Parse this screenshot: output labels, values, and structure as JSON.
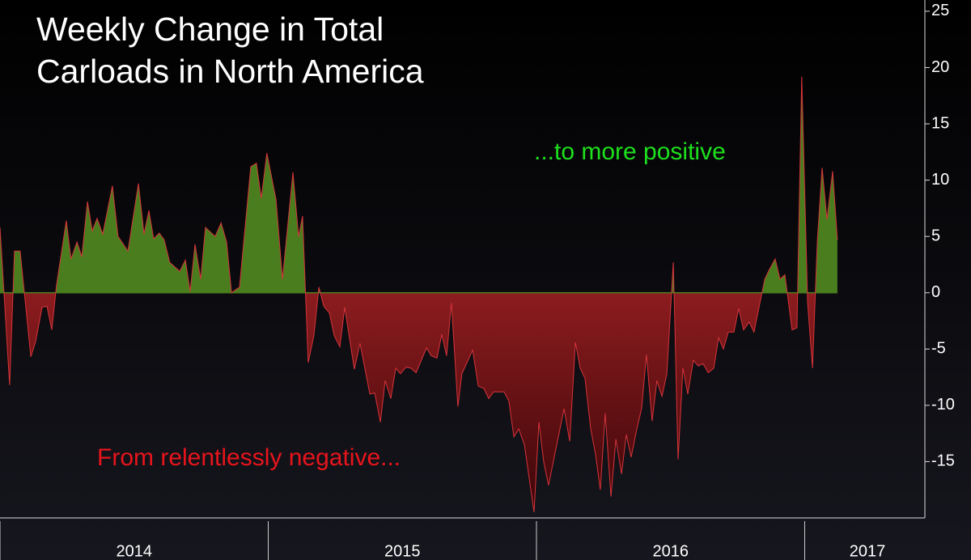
{
  "chart_data": {
    "type": "area",
    "title": [
      "Weekly Change in Total",
      "Carloads in North America"
    ],
    "annotations": [
      {
        "text": "...to more positive",
        "color": "#1ee01e"
      },
      {
        "text": "From relentlessly negative...",
        "color": "#e8141c"
      }
    ],
    "positive_color": "#4a7d1e",
    "negative_color": "#8c1c1f",
    "line_color": "#d8343a",
    "xlim": [
      2014,
      2017.448
    ],
    "xticks": [
      {
        "value": 2014.5,
        "label": "2014"
      },
      {
        "value": 2015.5,
        "label": "2015"
      },
      {
        "value": 2016.5,
        "label": "2016"
      },
      {
        "value": 2017.5,
        "label": "2017"
      }
    ],
    "ylim": [
      -20,
      26
    ],
    "yticks": [
      -15,
      -10,
      -5,
      0,
      5,
      10,
      15,
      20,
      25
    ],
    "y_axis_side": "right",
    "x": [
      2014,
      2014.036,
      2014.054,
      2014.075,
      2014.115,
      2014.133,
      2014.157,
      2014.175,
      2014.193,
      2014.211,
      2014.247,
      2014.265,
      2014.287,
      2014.305,
      2014.326,
      2014.344,
      2014.362,
      2014.383,
      2014.419,
      2014.44,
      2014.477,
      2014.516,
      2014.537,
      2014.555,
      2014.573,
      2014.594,
      2014.612,
      2014.633,
      2014.67,
      2014.691,
      2014.709,
      2014.727,
      2014.748,
      2014.766,
      2014.802,
      2014.824,
      2014.845,
      2014.863,
      2014.893,
      2014.935,
      2014.956,
      2014.974,
      2014.995,
      2015.029,
      2015.053,
      2015.092,
      2015.113,
      2015.128,
      2015.149,
      2015.17,
      2015.189,
      2015.207,
      2015.228,
      2015.246,
      2015.267,
      2015.285,
      2015.321,
      2015.342,
      2015.379,
      2015.397,
      2015.418,
      2015.436,
      2015.457,
      2015.475,
      2015.493,
      2015.514,
      2015.532,
      2015.551,
      2015.59,
      2015.608,
      2015.629,
      2015.647,
      2015.665,
      2015.683,
      2015.707,
      2015.722,
      2015.762,
      2015.783,
      2015.804,
      2015.822,
      2015.84,
      2015.879,
      2015.897,
      2015.916,
      2015.934,
      2015.955,
      2015.991,
      2016.009,
      2016.027,
      2016.045,
      2016.066,
      2016.103,
      2016.124,
      2016.145,
      2016.163,
      2016.181,
      2016.202,
      2016.22,
      2016.238,
      2016.256,
      2016.278,
      2016.296,
      2016.317,
      2016.335,
      2016.353,
      2016.374,
      2016.392,
      2016.41,
      2016.431,
      2016.449,
      2016.468,
      2016.486,
      2016.51,
      2016.528,
      2016.546,
      2016.564,
      2016.585,
      2016.603,
      2016.621,
      2016.64,
      2016.661,
      2016.679,
      2016.697,
      2016.715,
      2016.736,
      2016.754,
      2016.772,
      2016.793,
      2016.811,
      2016.851,
      2016.869,
      2016.89,
      2016.908,
      2016.926,
      2016.953,
      2016.971,
      2016.989,
      2017.011,
      2017.029,
      2017.047,
      2017.065,
      2017.083,
      2017.104,
      2017.122
    ],
    "values": [
      5.8,
      -8.2,
      3.7,
      3.7,
      -5.7,
      -4.3,
      -1.3,
      -1.2,
      -3.3,
      0.7,
      6.4,
      3.0,
      4.5,
      3.2,
      8.1,
      5.5,
      6.6,
      5.2,
      9.5,
      5.0,
      3.7,
      9.7,
      5.2,
      7.3,
      4.8,
      5.3,
      4.7,
      2.7,
      1.9,
      2.9,
      0.1,
      4.3,
      1.2,
      5.8,
      5.0,
      6.2,
      4.5,
      0,
      0.5,
      11.2,
      11.5,
      8.4,
      12.4,
      8.3,
      1.2,
      10.7,
      5.0,
      6.8,
      -6.2,
      -3.8,
      0.5,
      -1.2,
      -1.8,
      -3.8,
      -4.8,
      -1.3,
      -6.8,
      -4.5,
      -9.0,
      -8.9,
      -11.5,
      -7.8,
      -9.4,
      -6.7,
      -7.2,
      -6.6,
      -6.7,
      -7.1,
      -4.9,
      -5.6,
      -5.8,
      -3.7,
      -5.6,
      -0.9,
      -10.1,
      -7.2,
      -5.1,
      -8.3,
      -8.5,
      -9.4,
      -8.8,
      -8.8,
      -9.6,
      -12.8,
      -12.1,
      -13.5,
      -19.5,
      -11.5,
      -15.0,
      -17.1,
      -14.6,
      -10.3,
      -13.2,
      -4.4,
      -6.7,
      -7.6,
      -12.1,
      -14.3,
      -17.5,
      -10.7,
      -18.1,
      -13.0,
      -16.1,
      -12.6,
      -14.6,
      -12.1,
      -10.3,
      -5.5,
      -11.4,
      -7.8,
      -9.2,
      -7.2,
      2.7,
      -14.8,
      -6.7,
      -9.0,
      -6.0,
      -6.5,
      -6.3,
      -7.1,
      -6.7,
      -4.0,
      -5.0,
      -3.5,
      -3.5,
      -1.4,
      -3.3,
      -2.6,
      -3.5,
      1.2,
      2.1,
      3.0,
      1.2,
      1.6,
      -3.3,
      -3.1,
      19.2,
      -0.9,
      -6.7,
      4.6,
      11.1,
      6.5,
      10.8,
      4.7
    ]
  }
}
